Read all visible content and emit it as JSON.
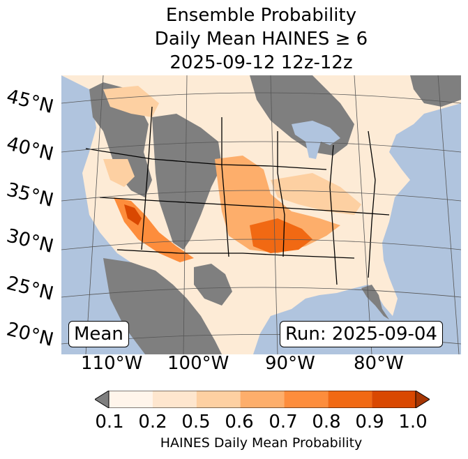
{
  "title": {
    "line1": "Ensemble Probability",
    "line2": "Daily Mean HAINES ≥ 6",
    "line3": "2025-09-12 12z-12z"
  },
  "map": {
    "lat_labels": [
      "45°N",
      "40°N",
      "35°N",
      "30°N",
      "25°N",
      "20°N"
    ],
    "lon_labels": [
      "110°W",
      "100°W",
      "90°W",
      "80°W"
    ],
    "mean_label": "Mean",
    "run_label": "Run: 2025-09-04",
    "colors": {
      "ocean": "#b0c4de",
      "missing": "#7f7f7f",
      "graticule": "#555555"
    }
  },
  "colorbar": {
    "ticks": [
      "0.1",
      "0.2",
      "0.5",
      "0.6",
      "0.7",
      "0.8",
      "0.9",
      "1.0"
    ],
    "colors": [
      "#fff5eb",
      "#fee6ce",
      "#fdd0a2",
      "#fdae6b",
      "#fd8d3c",
      "#f16913",
      "#d94801",
      "#a63603"
    ],
    "under_color": "#7f7f7f",
    "label": "HAINES Daily Mean Probability"
  }
}
